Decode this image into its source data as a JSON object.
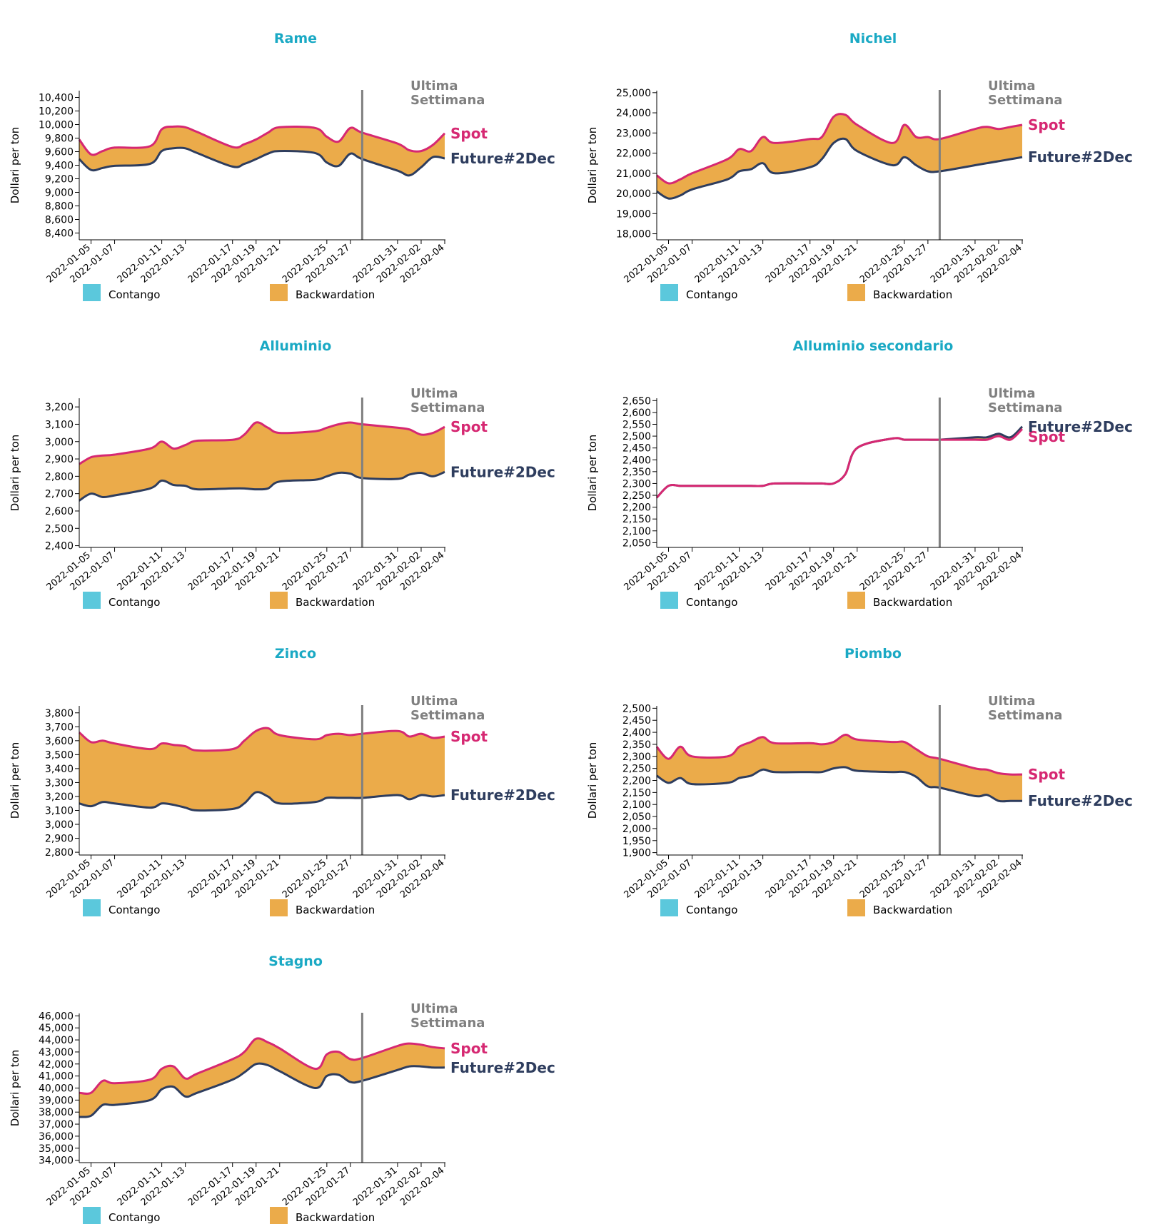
{
  "colors": {
    "title": "#1aa9c4",
    "spot": "#d62872",
    "future": "#2e3d5e",
    "backwardation": "#ebab4a",
    "contango": "#5bc8dc",
    "last_week_line": "#808080",
    "annotation": "#808080"
  },
  "labels": {
    "ylabel": "Dollari per ton",
    "last_week": [
      "Ultima",
      "Settimana"
    ],
    "spot": "Spot",
    "future": "Future#2Dec",
    "legend": [
      {
        "name": "Contango",
        "color": "#5bc8dc"
      },
      {
        "name": "Backwardation",
        "color": "#ebab4a"
      }
    ]
  },
  "x_ticks": [
    "2022-01-05",
    "2022-01-07",
    "2022-01-11",
    "2022-01-13",
    "2022-01-17",
    "2022-01-19",
    "2022-01-21",
    "2022-01-25",
    "2022-01-27",
    "2022-01-31",
    "2022-02-02",
    "2022-02-04"
  ],
  "chart_data": [
    {
      "type": "area",
      "title": "Rame",
      "xlabel": "",
      "ylabel": "Dollari per ton",
      "ylim": [
        8300,
        10500
      ],
      "yticks": [
        8400,
        8600,
        8800,
        9000,
        9200,
        9400,
        9600,
        9800,
        10000,
        10200,
        10400
      ],
      "x_range": [
        "2022-01-04",
        "2022-02-04"
      ],
      "last_week_date": "2022-01-28",
      "dates": [
        "2022-01-04",
        "2022-01-05",
        "2022-01-06",
        "2022-01-07",
        "2022-01-10",
        "2022-01-11",
        "2022-01-12",
        "2022-01-13",
        "2022-01-14",
        "2022-01-17",
        "2022-01-18",
        "2022-01-19",
        "2022-01-20",
        "2022-01-21",
        "2022-01-24",
        "2022-01-25",
        "2022-01-26",
        "2022-01-27",
        "2022-01-28",
        "2022-01-31",
        "2022-02-01",
        "2022-02-02",
        "2022-02-03",
        "2022-02-04"
      ],
      "series": [
        {
          "name": "Spot",
          "values": [
            9780,
            9560,
            9610,
            9660,
            9680,
            9930,
            9970,
            9960,
            9890,
            9670,
            9710,
            9780,
            9880,
            9960,
            9950,
            9820,
            9750,
            9950,
            9880,
            9720,
            9620,
            9610,
            9700,
            9870
          ]
        },
        {
          "name": "Future#2Dec",
          "values": [
            9490,
            9330,
            9360,
            9390,
            9420,
            9610,
            9650,
            9650,
            9580,
            9380,
            9420,
            9490,
            9570,
            9610,
            9580,
            9440,
            9390,
            9570,
            9490,
            9320,
            9250,
            9370,
            9520,
            9500
          ]
        }
      ]
    },
    {
      "type": "area",
      "title": "Nichel",
      "xlabel": "",
      "ylabel": "Dollari per ton",
      "ylim": [
        17700,
        25100
      ],
      "yticks": [
        18000,
        19000,
        20000,
        21000,
        22000,
        23000,
        24000,
        25000
      ],
      "x_range": [
        "2022-01-04",
        "2022-02-04"
      ],
      "last_week_date": "2022-01-28",
      "dates": [
        "2022-01-04",
        "2022-01-05",
        "2022-01-06",
        "2022-01-07",
        "2022-01-10",
        "2022-01-11",
        "2022-01-12",
        "2022-01-13",
        "2022-01-14",
        "2022-01-17",
        "2022-01-18",
        "2022-01-19",
        "2022-01-20",
        "2022-01-21",
        "2022-01-24",
        "2022-01-25",
        "2022-01-26",
        "2022-01-27",
        "2022-01-28",
        "2022-01-31",
        "2022-02-01",
        "2022-02-02",
        "2022-02-03",
        "2022-02-04"
      ],
      "series": [
        {
          "name": "Spot",
          "values": [
            20900,
            20500,
            20700,
            21000,
            21700,
            22200,
            22100,
            22800,
            22500,
            22700,
            22800,
            23800,
            23900,
            23400,
            22500,
            23400,
            22800,
            22800,
            22700,
            23200,
            23300,
            23200,
            23300,
            23400
          ]
        },
        {
          "name": "Future#2Dec",
          "values": [
            20100,
            19750,
            19900,
            20200,
            20700,
            21100,
            21200,
            21500,
            21000,
            21300,
            21700,
            22500,
            22700,
            22100,
            21400,
            21800,
            21400,
            21100,
            21100,
            21400,
            21500,
            21600,
            21700,
            21800
          ]
        }
      ]
    },
    {
      "type": "area",
      "title": "Alluminio",
      "xlabel": "",
      "ylabel": "Dollari per ton",
      "ylim": [
        2390,
        3250
      ],
      "yticks": [
        2400,
        2500,
        2600,
        2700,
        2800,
        2900,
        3000,
        3100,
        3200
      ],
      "x_range": [
        "2022-01-04",
        "2022-02-04"
      ],
      "last_week_date": "2022-01-28",
      "dates": [
        "2022-01-04",
        "2022-01-05",
        "2022-01-06",
        "2022-01-07",
        "2022-01-10",
        "2022-01-11",
        "2022-01-12",
        "2022-01-13",
        "2022-01-14",
        "2022-01-17",
        "2022-01-18",
        "2022-01-19",
        "2022-01-20",
        "2022-01-21",
        "2022-01-24",
        "2022-01-25",
        "2022-01-26",
        "2022-01-27",
        "2022-01-28",
        "2022-01-31",
        "2022-02-01",
        "2022-02-02",
        "2022-02-03",
        "2022-02-04"
      ],
      "series": [
        {
          "name": "Spot",
          "values": [
            2870,
            2910,
            2920,
            2925,
            2960,
            3000,
            2960,
            2980,
            3005,
            3010,
            3040,
            3110,
            3080,
            3050,
            3060,
            3080,
            3100,
            3110,
            3100,
            3080,
            3070,
            3040,
            3050,
            3085
          ]
        },
        {
          "name": "Future#2Dec",
          "values": [
            2660,
            2700,
            2680,
            2690,
            2730,
            2775,
            2750,
            2745,
            2725,
            2730,
            2730,
            2725,
            2730,
            2770,
            2780,
            2800,
            2820,
            2815,
            2790,
            2785,
            2810,
            2820,
            2800,
            2825
          ]
        }
      ]
    },
    {
      "type": "area",
      "title": "Alluminio secondario",
      "xlabel": "",
      "ylabel": "Dollari per ton",
      "ylim": [
        2030,
        2660
      ],
      "yticks": [
        2050,
        2100,
        2150,
        2200,
        2250,
        2300,
        2350,
        2400,
        2450,
        2500,
        2550,
        2600,
        2650
      ],
      "x_range": [
        "2022-01-04",
        "2022-02-04"
      ],
      "last_week_date": "2022-01-28",
      "dates": [
        "2022-01-04",
        "2022-01-05",
        "2022-01-06",
        "2022-01-07",
        "2022-01-10",
        "2022-01-11",
        "2022-01-12",
        "2022-01-13",
        "2022-01-14",
        "2022-01-17",
        "2022-01-18",
        "2022-01-19",
        "2022-01-20",
        "2022-01-21",
        "2022-01-24",
        "2022-01-25",
        "2022-01-26",
        "2022-01-27",
        "2022-01-28",
        "2022-01-31",
        "2022-02-01",
        "2022-02-02",
        "2022-02-03",
        "2022-02-04"
      ],
      "series": [
        {
          "name": "Spot",
          "values": [
            2240,
            2290,
            2290,
            2290,
            2290,
            2290,
            2290,
            2290,
            2300,
            2300,
            2300,
            2300,
            2340,
            2450,
            2490,
            2485,
            2485,
            2485,
            2485,
            2485,
            2485,
            2500,
            2485,
            2530
          ]
        },
        {
          "name": "Future#2Dec",
          "values": [
            2240,
            2290,
            2290,
            2290,
            2290,
            2290,
            2290,
            2290,
            2300,
            2300,
            2300,
            2300,
            2340,
            2450,
            2490,
            2485,
            2485,
            2485,
            2485,
            2495,
            2495,
            2510,
            2495,
            2540
          ]
        }
      ]
    },
    {
      "type": "area",
      "title": "Zinco",
      "xlabel": "",
      "ylabel": "Dollari per ton",
      "ylim": [
        2780,
        3850
      ],
      "yticks": [
        2800,
        2900,
        3000,
        3100,
        3200,
        3300,
        3400,
        3500,
        3600,
        3700,
        3800
      ],
      "x_range": [
        "2022-01-04",
        "2022-02-04"
      ],
      "last_week_date": "2022-01-28",
      "dates": [
        "2022-01-04",
        "2022-01-05",
        "2022-01-06",
        "2022-01-07",
        "2022-01-10",
        "2022-01-11",
        "2022-01-12",
        "2022-01-13",
        "2022-01-14",
        "2022-01-17",
        "2022-01-18",
        "2022-01-19",
        "2022-01-20",
        "2022-01-21",
        "2022-01-24",
        "2022-01-25",
        "2022-01-26",
        "2022-01-27",
        "2022-01-28",
        "2022-01-31",
        "2022-02-01",
        "2022-02-02",
        "2022-02-03",
        "2022-02-04"
      ],
      "series": [
        {
          "name": "Spot",
          "values": [
            3660,
            3590,
            3600,
            3580,
            3540,
            3580,
            3570,
            3560,
            3530,
            3540,
            3600,
            3670,
            3690,
            3640,
            3610,
            3640,
            3650,
            3640,
            3650,
            3670,
            3630,
            3650,
            3620,
            3630
          ]
        },
        {
          "name": "Future#2Dec",
          "values": [
            3150,
            3130,
            3160,
            3150,
            3120,
            3150,
            3140,
            3120,
            3100,
            3110,
            3150,
            3230,
            3200,
            3150,
            3160,
            3190,
            3190,
            3190,
            3190,
            3210,
            3180,
            3210,
            3200,
            3210
          ]
        }
      ]
    },
    {
      "type": "area",
      "title": "Piombo",
      "xlabel": "",
      "ylabel": "Dollari per ton",
      "ylim": [
        1890,
        2510
      ],
      "yticks": [
        1900,
        1950,
        2000,
        2050,
        2100,
        2150,
        2200,
        2250,
        2300,
        2350,
        2400,
        2450,
        2500
      ],
      "x_range": [
        "2022-01-04",
        "2022-02-04"
      ],
      "last_week_date": "2022-01-28",
      "dates": [
        "2022-01-04",
        "2022-01-05",
        "2022-01-06",
        "2022-01-07",
        "2022-01-10",
        "2022-01-11",
        "2022-01-12",
        "2022-01-13",
        "2022-01-14",
        "2022-01-17",
        "2022-01-18",
        "2022-01-19",
        "2022-01-20",
        "2022-01-21",
        "2022-01-24",
        "2022-01-25",
        "2022-01-26",
        "2022-01-27",
        "2022-01-28",
        "2022-01-31",
        "2022-02-01",
        "2022-02-02",
        "2022-02-03",
        "2022-02-04"
      ],
      "series": [
        {
          "name": "Spot",
          "values": [
            2340,
            2290,
            2340,
            2300,
            2300,
            2340,
            2360,
            2380,
            2355,
            2355,
            2350,
            2360,
            2390,
            2370,
            2360,
            2360,
            2330,
            2300,
            2290,
            2250,
            2245,
            2230,
            2225,
            2225
          ]
        },
        {
          "name": "Future#2Dec",
          "values": [
            2220,
            2190,
            2210,
            2185,
            2190,
            2210,
            2220,
            2245,
            2235,
            2235,
            2235,
            2250,
            2255,
            2240,
            2235,
            2235,
            2215,
            2175,
            2170,
            2135,
            2140,
            2115,
            2115,
            2115
          ]
        }
      ]
    },
    {
      "type": "area",
      "title": "Stagno",
      "xlabel": "",
      "ylabel": "Dollari per ton",
      "ylim": [
        33800,
        46200
      ],
      "yticks": [
        34000,
        35000,
        36000,
        37000,
        38000,
        39000,
        40000,
        41000,
        42000,
        43000,
        44000,
        45000,
        46000
      ],
      "x_range": [
        "2022-01-04",
        "2022-02-04"
      ],
      "last_week_date": "2022-01-28",
      "dates": [
        "2022-01-04",
        "2022-01-05",
        "2022-01-06",
        "2022-01-07",
        "2022-01-10",
        "2022-01-11",
        "2022-01-12",
        "2022-01-13",
        "2022-01-14",
        "2022-01-17",
        "2022-01-18",
        "2022-01-19",
        "2022-01-20",
        "2022-01-21",
        "2022-01-24",
        "2022-01-25",
        "2022-01-26",
        "2022-01-27",
        "2022-01-28",
        "2022-01-31",
        "2022-02-01",
        "2022-02-02",
        "2022-02-03",
        "2022-02-04"
      ],
      "series": [
        {
          "name": "Spot",
          "values": [
            39600,
            39600,
            40600,
            40400,
            40700,
            41600,
            41800,
            40800,
            41200,
            42400,
            43000,
            44100,
            43800,
            43300,
            41600,
            42800,
            43000,
            42400,
            42500,
            43500,
            43700,
            43600,
            43400,
            43300
          ]
        },
        {
          "name": "Future#2Dec",
          "values": [
            37600,
            37700,
            38600,
            38600,
            39000,
            39900,
            40100,
            39300,
            39600,
            40700,
            41300,
            42000,
            41900,
            41400,
            40000,
            41000,
            41100,
            40500,
            40600,
            41500,
            41800,
            41800,
            41700,
            41700
          ]
        }
      ]
    }
  ]
}
